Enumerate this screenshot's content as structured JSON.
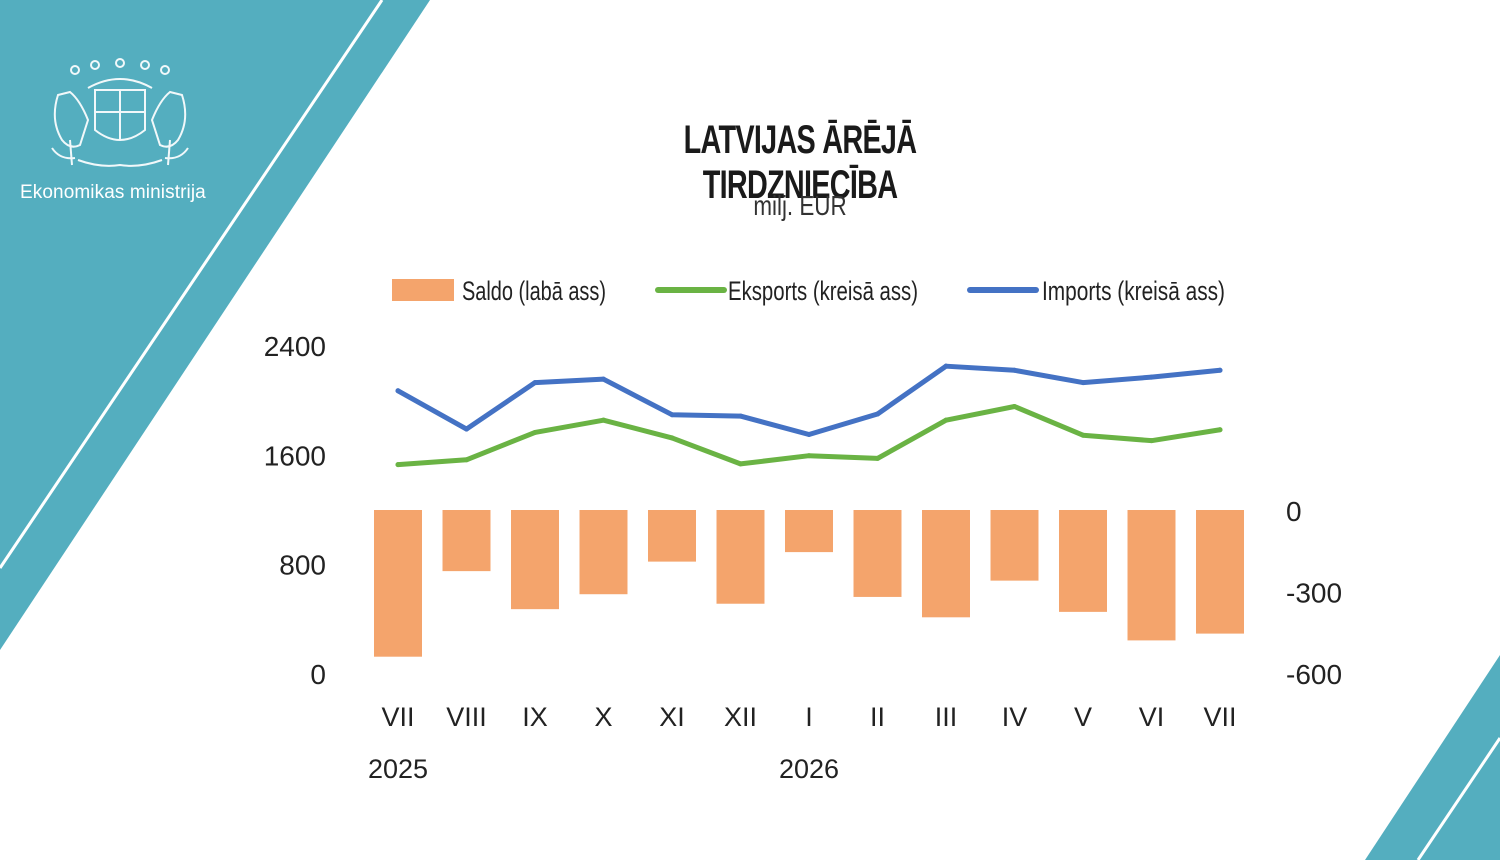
{
  "organization": {
    "name": "Ekonomikas ministrija",
    "logo_icon": "latvia-coat-of-arms-icon"
  },
  "colors": {
    "teal": "#54AEBF",
    "saldo": "#F4A46C",
    "eksports": "#6AB344",
    "imports": "#4472C4"
  },
  "chart_data": {
    "type": "bar+line",
    "title": "LATVIJAS ĀRĒJĀ TIRDZNIECĪBA",
    "subtitle": "milj. EUR",
    "categories": [
      "VII",
      "VIII",
      "IX",
      "X",
      "XI",
      "XII",
      "I",
      "II",
      "III",
      "IV",
      "V",
      "VI",
      "VII"
    ],
    "year_labels": [
      {
        "label": "2025",
        "category_index": 0
      },
      {
        "label": "2026",
        "category_index": 6
      }
    ],
    "left_axis": {
      "ticks": [
        "0",
        "800",
        "1600",
        "2400"
      ],
      "range": [
        0,
        2400
      ]
    },
    "right_axis": {
      "ticks": [
        "0",
        "-300",
        "-600"
      ],
      "range": [
        -600,
        0
      ]
    },
    "legend_placement": "top",
    "series": [
      {
        "name": "Saldo (labā ass)",
        "type": "bar",
        "axis": "right",
        "color": "#F4A46C",
        "values": [
          -540,
          -225,
          -365,
          -310,
          -190,
          -345,
          -155,
          -320,
          -395,
          -260,
          -375,
          -480,
          -455
        ]
      },
      {
        "name": "Eksports (kreisā ass)",
        "type": "line",
        "axis": "left",
        "color": "#6AB344",
        "values": [
          1525,
          1560,
          1760,
          1850,
          1720,
          1530,
          1590,
          1570,
          1850,
          1950,
          1740,
          1700,
          1780
        ]
      },
      {
        "name": "Imports (kreisā ass)",
        "type": "line",
        "axis": "left",
        "color": "#4472C4",
        "values": [
          2065,
          1785,
          2125,
          2150,
          1890,
          1880,
          1745,
          1895,
          2245,
          2215,
          2125,
          2165,
          2215
        ]
      }
    ]
  }
}
